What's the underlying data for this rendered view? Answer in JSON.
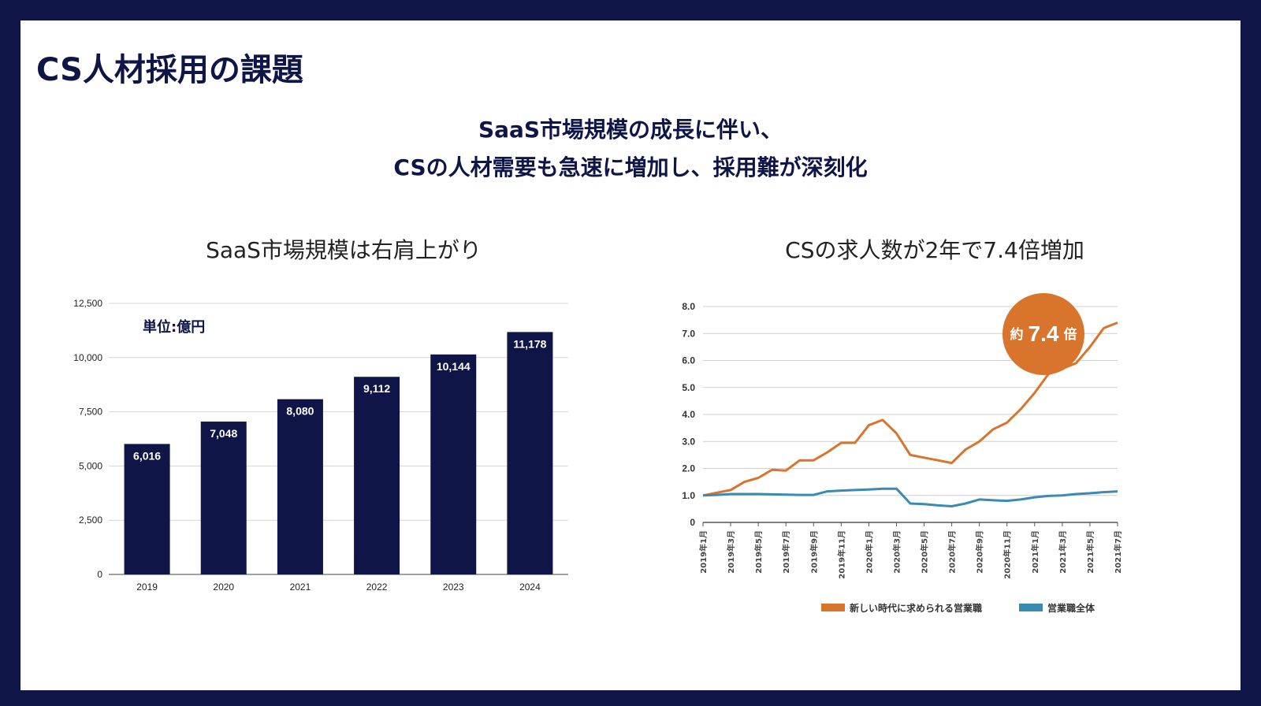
{
  "slide": {
    "title": "CS人材採用の課題",
    "subtitle_line1": "SaaS市場規模の成長に伴い、",
    "subtitle_line2": "CSの人材需要も急速に増加し、採用難が深刻化"
  },
  "colors": {
    "navy": "#0f1547",
    "orange": "#d9742c",
    "blue": "#3a8ab3",
    "grid": "#d5d5d5"
  },
  "chart_data": [
    {
      "type": "bar",
      "title": "SaaS市場規模は右肩上がり",
      "unit_note": "単位:億円",
      "categories": [
        "2019",
        "2020",
        "2021",
        "2022",
        "2023",
        "2024"
      ],
      "values": [
        6016,
        7048,
        8080,
        9112,
        10144,
        11178
      ],
      "value_labels": [
        "6,016",
        "7,048",
        "8,080",
        "9,112",
        "10,144",
        "11,178"
      ],
      "yticks": [
        "0",
        "2,500",
        "5,000",
        "7,500",
        "10,000",
        "12,500"
      ],
      "ylim": [
        0,
        12500
      ],
      "grid": true
    },
    {
      "type": "line",
      "title": "CSの求人数が2年で7.4倍増加",
      "callout": {
        "prefix": "約",
        "value": "7.4",
        "suffix": "倍"
      },
      "x": [
        "2019年1月",
        "2019年2月",
        "2019年3月",
        "2019年4月",
        "2019年5月",
        "2019年6月",
        "2019年7月",
        "2019年8月",
        "2019年9月",
        "2019年10月",
        "2019年11月",
        "2019年12月",
        "2020年1月",
        "2020年2月",
        "2020年3月",
        "2020年4月",
        "2020年5月",
        "2020年6月",
        "2020年7月",
        "2020年8月",
        "2020年9月",
        "2020年10月",
        "2020年11月",
        "2020年12月",
        "2021年1月",
        "2021年2月",
        "2021年3月",
        "2021年4月",
        "2021年5月",
        "2021年6月",
        "2021年7月"
      ],
      "xtick_labels": [
        "2019年1月",
        "2019年3月",
        "2019年5月",
        "2019年7月",
        "2019年9月",
        "2019年11月",
        "2020年1月",
        "2020年3月",
        "2020年5月",
        "2020年7月",
        "2020年9月",
        "2020年11月",
        "2021年1月",
        "2021年3月",
        "2021年5月",
        "2021年7月"
      ],
      "yticks": [
        "0",
        "1.0",
        "2.0",
        "3.0",
        "4.0",
        "5.0",
        "6.0",
        "7.0",
        "8.0"
      ],
      "ylim": [
        0,
        8
      ],
      "grid": true,
      "legend_position": "bottom",
      "series": [
        {
          "name": "新しい時代に求められる営業職",
          "color": "#d9742c",
          "values": [
            1.0,
            1.1,
            1.2,
            1.5,
            1.65,
            1.95,
            1.92,
            2.3,
            2.3,
            2.6,
            2.95,
            2.95,
            3.6,
            3.8,
            3.3,
            2.5,
            2.4,
            2.3,
            2.2,
            2.7,
            3.0,
            3.45,
            3.7,
            4.2,
            4.8,
            5.5,
            5.7,
            5.9,
            6.5,
            7.2,
            7.4
          ]
        },
        {
          "name": "営業職全体",
          "color": "#3a8ab3",
          "values": [
            1.0,
            1.02,
            1.05,
            1.05,
            1.05,
            1.04,
            1.03,
            1.02,
            1.02,
            1.15,
            1.18,
            1.2,
            1.22,
            1.25,
            1.25,
            0.7,
            0.68,
            0.63,
            0.6,
            0.7,
            0.85,
            0.82,
            0.8,
            0.85,
            0.93,
            0.98,
            1.0,
            1.05,
            1.08,
            1.12,
            1.15
          ]
        }
      ]
    }
  ]
}
